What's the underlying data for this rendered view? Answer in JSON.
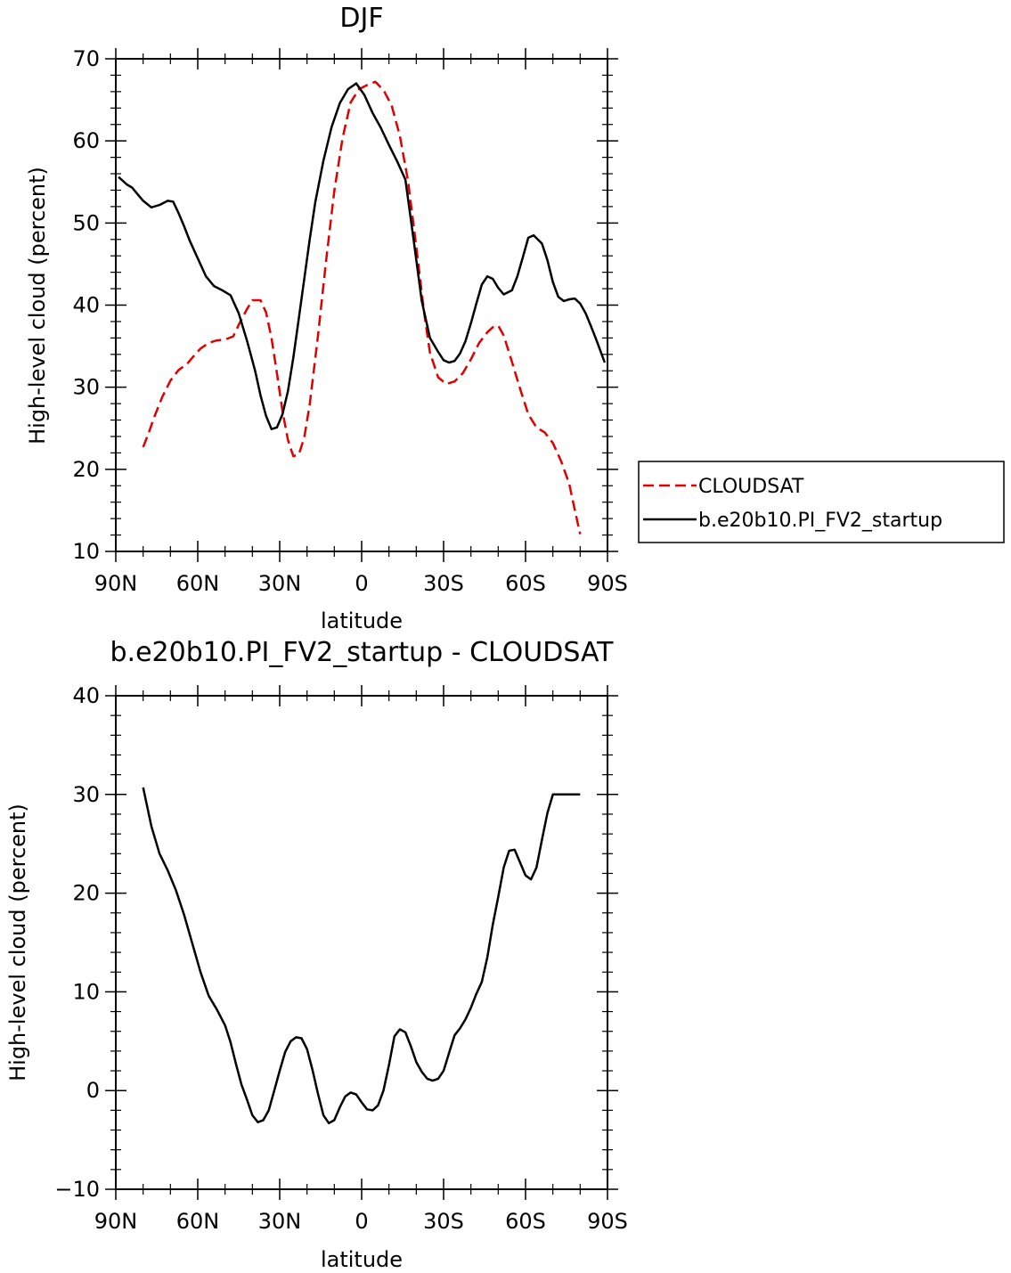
{
  "chart_data": [
    {
      "type": "line",
      "title": "DJF",
      "xlabel": "latitude",
      "ylabel": "High-level cloud (percent)",
      "xlim": [
        -90,
        90
      ],
      "ylim": [
        10,
        70
      ],
      "xticks": [
        {
          "value": -90,
          "label": "90N"
        },
        {
          "value": -60,
          "label": "60N"
        },
        {
          "value": -30,
          "label": "30N"
        },
        {
          "value": 0,
          "label": "0"
        },
        {
          "value": 30,
          "label": "30S"
        },
        {
          "value": 60,
          "label": "60S"
        },
        {
          "value": 90,
          "label": "90S"
        }
      ],
      "yticks": [
        {
          "value": 10,
          "label": "10"
        },
        {
          "value": 20,
          "label": "20"
        },
        {
          "value": 30,
          "label": "30"
        },
        {
          "value": 40,
          "label": "40"
        },
        {
          "value": 50,
          "label": "50"
        },
        {
          "value": 60,
          "label": "60"
        },
        {
          "value": 70,
          "label": "70"
        }
      ],
      "legend": "right",
      "series": [
        {
          "name": "CLOUDSAT",
          "color": "#e00000",
          "dash": "dashed",
          "x": [
            -80,
            -78,
            -76,
            -73,
            -70,
            -67,
            -64,
            -62,
            -59,
            -56,
            -53,
            -50,
            -47,
            -45,
            -42,
            -40,
            -37,
            -35,
            -33,
            -31,
            -29,
            -27,
            -25,
            -23,
            -21,
            -19,
            -16,
            -13,
            -10,
            -7,
            -4,
            -1,
            2,
            5,
            8,
            11,
            14,
            17,
            20,
            23,
            25,
            28,
            31,
            34,
            37,
            40,
            43,
            46,
            48,
            50,
            52,
            55,
            58,
            61,
            64,
            67,
            70,
            73,
            76,
            78,
            80
          ],
          "y": [
            22.7,
            24.4,
            26.3,
            28.8,
            30.8,
            32.1,
            32.8,
            33.6,
            34.7,
            35.4,
            35.7,
            35.8,
            36.2,
            37.6,
            39.5,
            40.6,
            40.6,
            39.1,
            36.0,
            31.7,
            27.1,
            23.6,
            21.6,
            21.8,
            23.9,
            27.9,
            36.2,
            45.4,
            53.9,
            60.3,
            64.7,
            66.3,
            66.8,
            67.2,
            66.2,
            64.3,
            60.6,
            55.1,
            47.1,
            38.8,
            34.2,
            31.2,
            30.4,
            30.7,
            31.7,
            33.4,
            35.4,
            36.7,
            37.3,
            37.5,
            36.3,
            33.1,
            29.8,
            26.7,
            25.1,
            24.5,
            23.2,
            21.0,
            18.2,
            15.1,
            12.1
          ]
        },
        {
          "name": "b.e20b10.PI_FV2_startup",
          "color": "#000000",
          "dash": "solid",
          "x": [
            -89,
            -86,
            -84,
            -82,
            -80,
            -77,
            -74,
            -71,
            -69,
            -67,
            -65,
            -63,
            -60,
            -57,
            -54,
            -51,
            -48,
            -45,
            -42,
            -39,
            -37,
            -35,
            -33,
            -31,
            -29,
            -27,
            -25,
            -23,
            -21,
            -19,
            -17,
            -14,
            -11,
            -8,
            -5,
            -2,
            1,
            4,
            7,
            10,
            13,
            16,
            19,
            22,
            25,
            28,
            30,
            32,
            34,
            36,
            38,
            40,
            42,
            44,
            46,
            48,
            50,
            52,
            55,
            57,
            59,
            61,
            63,
            66,
            68,
            70,
            72,
            74,
            76,
            78,
            80,
            82,
            84,
            86,
            89
          ],
          "y": [
            55.6,
            54.7,
            54.3,
            53.5,
            52.7,
            51.9,
            52.2,
            52.7,
            52.6,
            51.2,
            49.6,
            47.9,
            45.7,
            43.5,
            42.3,
            41.8,
            41.2,
            39.0,
            35.7,
            32.0,
            29.0,
            26.5,
            24.9,
            25.1,
            26.7,
            29.5,
            33.6,
            38.4,
            43.2,
            48.0,
            52.5,
            57.6,
            61.7,
            64.6,
            66.3,
            67.0,
            65.6,
            63.4,
            61.6,
            59.5,
            57.5,
            55.3,
            48.0,
            40.5,
            36.0,
            34.3,
            33.3,
            33.0,
            33.2,
            34.1,
            35.6,
            37.8,
            40.2,
            42.5,
            43.5,
            43.2,
            42.1,
            41.3,
            41.8,
            43.5,
            45.8,
            48.2,
            48.5,
            47.5,
            45.5,
            42.8,
            41.0,
            40.5,
            40.7,
            40.8,
            40.2,
            39.0,
            37.4,
            35.7,
            33.0
          ]
        }
      ]
    },
    {
      "type": "line",
      "title": "b.e20b10.PI_FV2_startup - CLOUDSAT",
      "xlabel": "latitude",
      "ylabel": "High-level cloud (percent)",
      "xlim": [
        -90,
        90
      ],
      "ylim": [
        -10,
        40
      ],
      "xticks": [
        {
          "value": -90,
          "label": "90N"
        },
        {
          "value": -60,
          "label": "60N"
        },
        {
          "value": -30,
          "label": "30N"
        },
        {
          "value": 0,
          "label": "0"
        },
        {
          "value": 30,
          "label": "30S"
        },
        {
          "value": 60,
          "label": "60S"
        },
        {
          "value": 90,
          "label": "90S"
        }
      ],
      "yticks": [
        {
          "value": -10,
          "label": "−10"
        },
        {
          "value": 0,
          "label": "0"
        },
        {
          "value": 10,
          "label": "10"
        },
        {
          "value": 20,
          "label": "20"
        },
        {
          "value": 30,
          "label": "30"
        },
        {
          "value": 40,
          "label": "40"
        }
      ],
      "series": [
        {
          "color": "#000000",
          "dash": "solid",
          "x": [
            -80,
            -77,
            -74,
            -71,
            -68,
            -65,
            -62,
            -59,
            -56,
            -53,
            -50,
            -48,
            -46,
            -44,
            -42,
            -40,
            -38,
            -36,
            -34,
            -32,
            -30,
            -28,
            -26,
            -24,
            -22,
            -20,
            -18,
            -16,
            -14,
            -12,
            -10,
            -8,
            -6,
            -4,
            -2,
            0,
            2,
            4,
            6,
            8,
            10,
            12,
            14,
            16,
            18,
            20,
            22,
            24,
            26,
            28,
            30,
            32,
            34,
            36,
            38,
            40,
            42,
            44,
            46,
            48,
            50,
            52,
            54,
            56,
            58,
            60,
            62,
            64,
            66,
            68,
            70,
            72,
            74,
            76,
            78,
            80
          ],
          "y": [
            30.7,
            26.8,
            24.0,
            22.3,
            20.3,
            17.8,
            14.9,
            12.0,
            9.6,
            8.2,
            6.6,
            4.9,
            2.7,
            0.6,
            -0.9,
            -2.5,
            -3.2,
            -3.0,
            -2.0,
            0.0,
            2.0,
            3.9,
            5.0,
            5.4,
            5.3,
            4.2,
            2.1,
            -0.3,
            -2.5,
            -3.3,
            -3.0,
            -1.7,
            -0.6,
            -0.2,
            -0.4,
            -1.2,
            -1.9,
            -2.0,
            -1.5,
            0.0,
            2.6,
            5.5,
            6.2,
            5.9,
            4.5,
            2.9,
            1.9,
            1.2,
            1.0,
            1.2,
            2.0,
            3.8,
            5.6,
            6.3,
            7.2,
            8.4,
            9.8,
            11.0,
            13.5,
            16.8,
            19.6,
            22.6,
            24.3,
            24.4,
            23.1,
            21.8,
            21.4,
            22.6,
            25.4,
            28.1,
            30.0,
            30.0,
            30.0,
            30.0,
            30.0,
            30.0
          ]
        }
      ]
    }
  ]
}
